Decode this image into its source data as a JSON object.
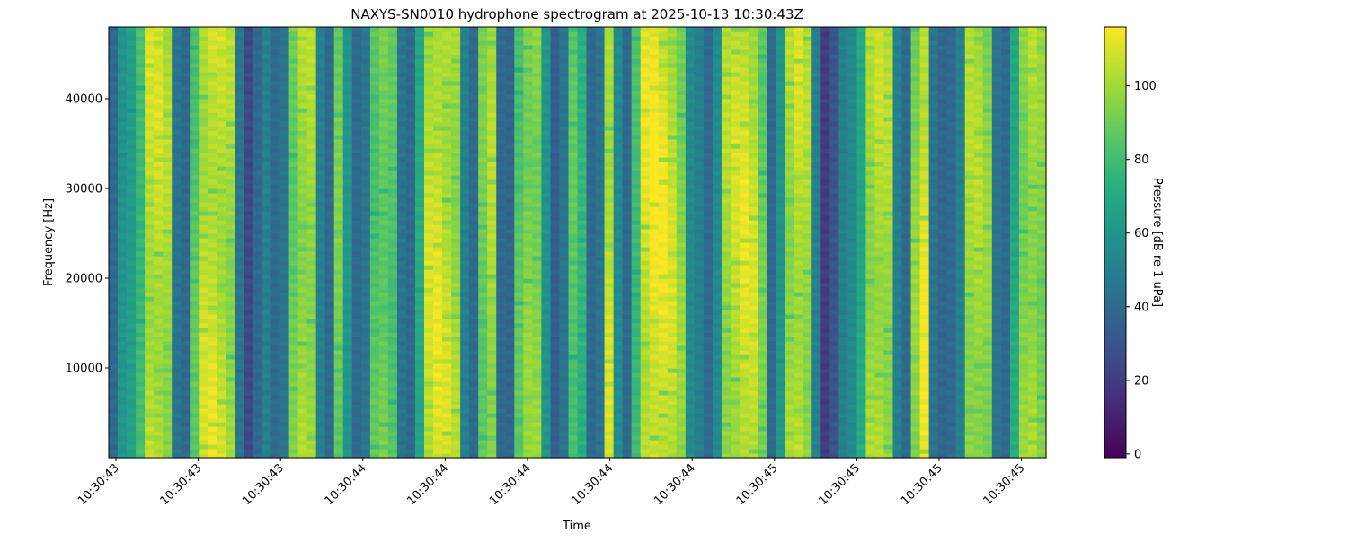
{
  "chart_data": {
    "type": "heatmap",
    "title": "NAXYS-SN0010 hydrophone spectrogram at 2025-10-13 10:30:43Z",
    "xlabel": "Time",
    "ylabel": "Frequency [Hz]",
    "ylim": [
      0,
      48000
    ],
    "yticks": [
      10000,
      20000,
      30000,
      40000
    ],
    "xtick_labels": [
      "10:30:43",
      "10:30:43",
      "10:30:43",
      "10:30:44",
      "10:30:44",
      "10:30:44",
      "10:30:44",
      "10:30:44",
      "10:30:45",
      "10:30:45",
      "10:30:45",
      "10:30:45"
    ],
    "colormap": "viridis",
    "colorbar": {
      "label": "Pressure [dB re 1 uPa]",
      "range": [
        -1,
        116
      ],
      "ticks": [
        0,
        20,
        40,
        60,
        80,
        100
      ]
    },
    "band_spacing_hz": 2600,
    "column_mean_db": [
      40,
      60,
      65,
      80,
      105,
      105,
      100,
      45,
      40,
      85,
      105,
      108,
      105,
      100,
      45,
      25,
      40,
      50,
      40,
      45,
      90,
      100,
      100,
      50,
      40,
      90,
      60,
      40,
      45,
      85,
      90,
      85,
      45,
      40,
      70,
      105,
      108,
      105,
      100,
      50,
      40,
      90,
      100,
      40,
      38,
      85,
      95,
      95,
      60,
      35,
      45,
      85,
      75,
      40,
      45,
      105,
      55,
      40,
      80,
      108,
      112,
      110,
      105,
      95,
      55,
      50,
      40,
      55,
      100,
      105,
      108,
      105,
      90,
      40,
      60,
      100,
      105,
      100,
      50,
      20,
      30,
      50,
      55,
      70,
      100,
      103,
      100,
      50,
      40,
      95,
      110,
      45,
      38,
      40,
      50,
      100,
      100,
      95,
      45,
      40,
      70,
      95,
      100,
      95
    ]
  }
}
